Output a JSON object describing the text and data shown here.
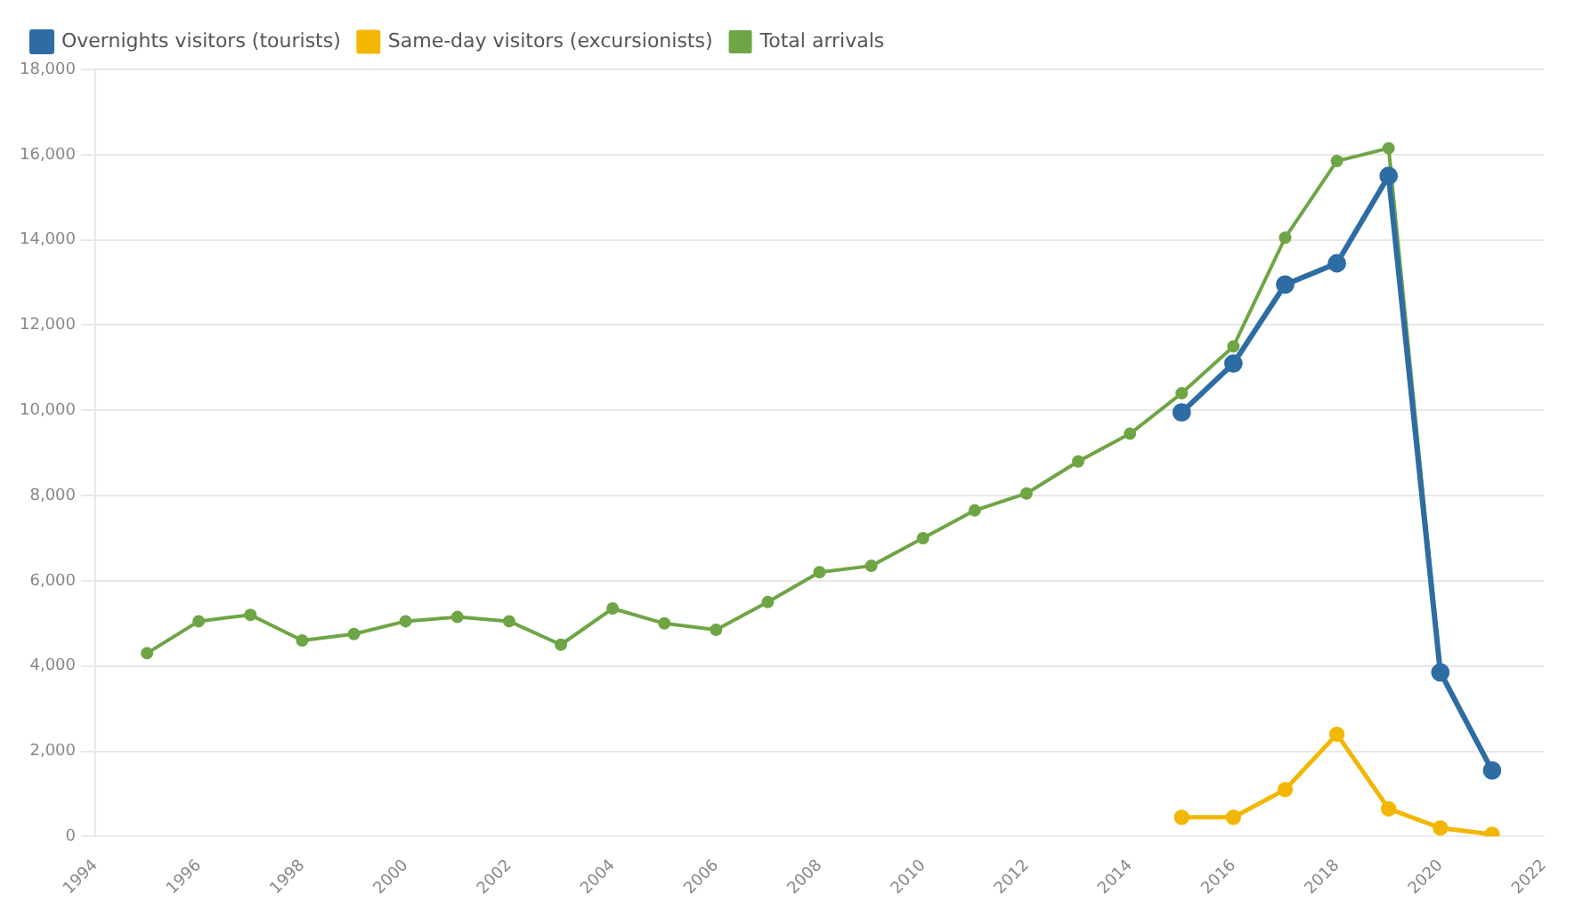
{
  "chart_data": {
    "type": "line",
    "x": [
      1995,
      1996,
      1997,
      1998,
      1999,
      2000,
      2001,
      2002,
      2003,
      2004,
      2005,
      2006,
      2007,
      2008,
      2009,
      2010,
      2011,
      2012,
      2013,
      2014,
      2015,
      2016,
      2017,
      2018,
      2019,
      2020,
      2021
    ],
    "series": [
      {
        "name": "Overnights visitors (tourists)",
        "color": "#2e6ca4",
        "values": [
          null,
          null,
          null,
          null,
          null,
          null,
          null,
          null,
          null,
          null,
          null,
          null,
          null,
          null,
          null,
          null,
          null,
          null,
          null,
          null,
          9950,
          11100,
          12950,
          13450,
          15500,
          3850,
          1550
        ]
      },
      {
        "name": "Same-day visitors (excursionists)",
        "color": "#f2b705",
        "values": [
          null,
          null,
          null,
          null,
          null,
          null,
          null,
          null,
          null,
          null,
          null,
          null,
          null,
          null,
          null,
          null,
          null,
          null,
          null,
          null,
          450,
          450,
          1100,
          2400,
          650,
          200,
          50
        ]
      },
      {
        "name": "Total arrivals",
        "color": "#6ea545",
        "values": [
          4300,
          5050,
          5200,
          4600,
          4750,
          5050,
          5150,
          5050,
          4500,
          5350,
          5000,
          4850,
          5500,
          6200,
          6350,
          7000,
          7650,
          8050,
          8800,
          9450,
          10400,
          11500,
          14050,
          15850,
          16150,
          3900,
          1550
        ]
      }
    ],
    "xlim": [
      1994,
      2022
    ],
    "xticks": [
      1994,
      1996,
      1998,
      2000,
      2002,
      2004,
      2006,
      2008,
      2010,
      2012,
      2014,
      2016,
      2018,
      2020,
      2022
    ],
    "ylim": [
      0,
      18000
    ],
    "yticks": [
      0,
      {
        "value": 2000,
        "label": "2,000"
      },
      {
        "value": 4000,
        "label": "4,000"
      },
      {
        "value": 6000,
        "label": "6,000"
      },
      {
        "value": 8000,
        "label": "8,000"
      },
      {
        "value": 10000,
        "label": "10,000"
      },
      {
        "value": 12000,
        "label": "12,000"
      },
      {
        "value": 14000,
        "label": "14,000"
      },
      {
        "value": 16000,
        "label": "16,000"
      },
      {
        "value": 18000,
        "label": "18,000"
      }
    ],
    "grid": "y",
    "legend": "top left",
    "marker": "circle",
    "line_style": "solid"
  }
}
